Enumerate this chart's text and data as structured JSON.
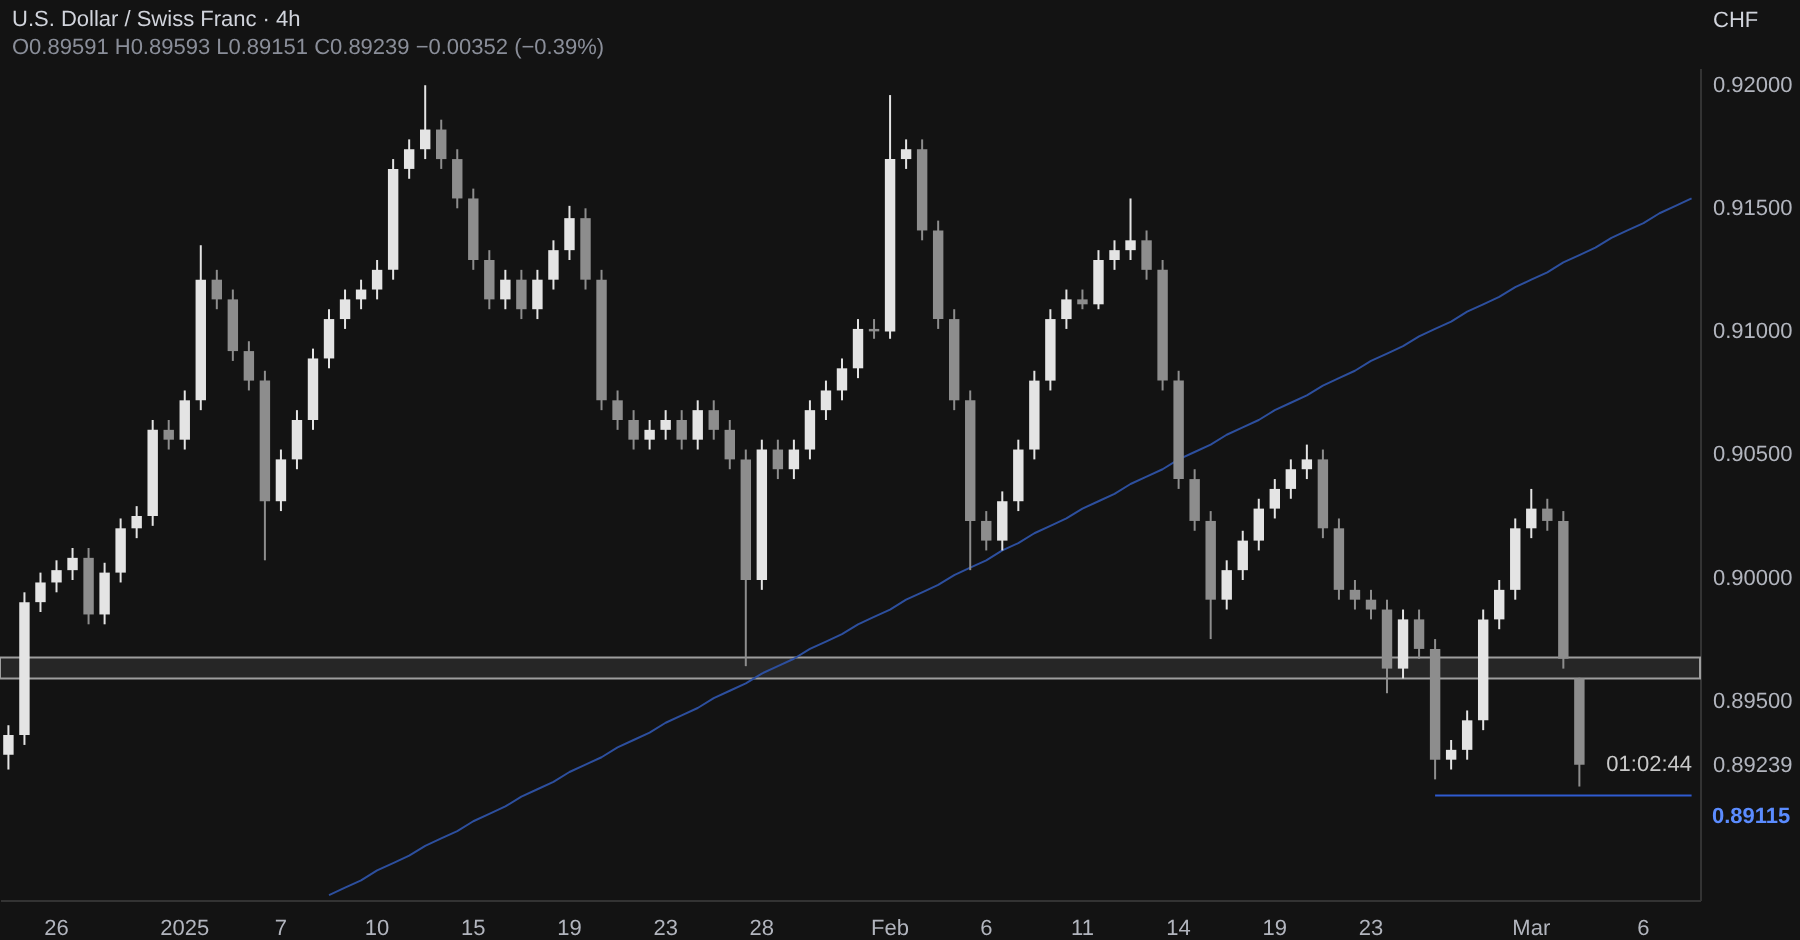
{
  "chart_data": {
    "type": "candlestick",
    "title": "U.S. Dollar / Swiss Franc · 4h",
    "subtitle": "O0.89591 H0.89593 L0.89151 C0.89239 −0.00352 (−0.39%)",
    "ylabel": "CHF",
    "categories": [
      null,
      null,
      null,
      "26",
      null,
      null,
      null,
      null,
      null,
      null,
      null,
      "2025",
      null,
      null,
      null,
      null,
      null,
      "7",
      null,
      null,
      null,
      null,
      null,
      "10",
      null,
      null,
      null,
      null,
      null,
      "15",
      null,
      null,
      null,
      null,
      null,
      "19",
      null,
      null,
      null,
      null,
      null,
      "23",
      null,
      null,
      null,
      null,
      null,
      "28",
      null,
      null,
      null,
      null,
      null,
      null,
      null,
      "Feb",
      null,
      null,
      null,
      null,
      null,
      "6",
      null,
      null,
      null,
      null,
      null,
      "11",
      null,
      null,
      null,
      null,
      null,
      "14",
      null,
      null,
      null,
      null,
      null,
      "19",
      null,
      null,
      null,
      null,
      null,
      "23",
      null,
      null,
      null,
      null,
      null,
      null,
      null,
      null,
      null,
      "Mar",
      null,
      null,
      null,
      null,
      null,
      null,
      "6",
      null,
      null,
      null
    ],
    "ohlc": [
      [
        0.8928,
        0.894,
        0.8922,
        0.8936
      ],
      [
        0.8936,
        0.8994,
        0.8932,
        0.899
      ],
      [
        0.899,
        0.9002,
        0.8986,
        0.8998
      ],
      [
        0.8998,
        0.9007,
        0.8994,
        0.9003
      ],
      [
        0.9003,
        0.9012,
        0.8999,
        0.9008
      ],
      [
        0.9008,
        0.9012,
        0.8981,
        0.8985
      ],
      [
        0.8985,
        0.9006,
        0.8981,
        0.9002
      ],
      [
        0.9002,
        0.9024,
        0.8998,
        0.902
      ],
      [
        0.902,
        0.9029,
        0.9016,
        0.9025
      ],
      [
        0.9025,
        0.9064,
        0.9021,
        0.906
      ],
      [
        0.906,
        0.9064,
        0.9052,
        0.9056
      ],
      [
        0.9056,
        0.9076,
        0.9052,
        0.9072
      ],
      [
        0.9072,
        0.9135,
        0.9068,
        0.9121
      ],
      [
        0.9121,
        0.9125,
        0.9109,
        0.9113
      ],
      [
        0.9113,
        0.9117,
        0.9088,
        0.9092
      ],
      [
        0.9092,
        0.9096,
        0.9076,
        0.908
      ],
      [
        0.908,
        0.9084,
        0.9007,
        0.9031
      ],
      [
        0.9031,
        0.9052,
        0.9027,
        0.9048
      ],
      [
        0.9048,
        0.9068,
        0.9044,
        0.9064
      ],
      [
        0.9064,
        0.9093,
        0.906,
        0.9089
      ],
      [
        0.9089,
        0.9109,
        0.9085,
        0.9105
      ],
      [
        0.9105,
        0.9117,
        0.9101,
        0.9113
      ],
      [
        0.9113,
        0.9121,
        0.9109,
        0.9117
      ],
      [
        0.9117,
        0.9129,
        0.9113,
        0.9125
      ],
      [
        0.9125,
        0.917,
        0.9121,
        0.9166
      ],
      [
        0.9166,
        0.9178,
        0.9162,
        0.9174
      ],
      [
        0.9174,
        0.92,
        0.917,
        0.9182
      ],
      [
        0.9182,
        0.9186,
        0.9166,
        0.917
      ],
      [
        0.917,
        0.9174,
        0.915,
        0.9154
      ],
      [
        0.9154,
        0.9158,
        0.9125,
        0.9129
      ],
      [
        0.9129,
        0.9133,
        0.9109,
        0.9113
      ],
      [
        0.9113,
        0.9125,
        0.9109,
        0.9121
      ],
      [
        0.9121,
        0.9125,
        0.9105,
        0.9109
      ],
      [
        0.9109,
        0.9125,
        0.9105,
        0.9121
      ],
      [
        0.9121,
        0.9137,
        0.9117,
        0.9133
      ],
      [
        0.9133,
        0.9151,
        0.9129,
        0.9146
      ],
      [
        0.9146,
        0.915,
        0.9117,
        0.9121
      ],
      [
        0.9121,
        0.9125,
        0.9068,
        0.9072
      ],
      [
        0.9072,
        0.9076,
        0.906,
        0.9064
      ],
      [
        0.9064,
        0.9068,
        0.9052,
        0.9056
      ],
      [
        0.9056,
        0.9064,
        0.9052,
        0.906
      ],
      [
        0.906,
        0.9068,
        0.9056,
        0.9064
      ],
      [
        0.9064,
        0.9068,
        0.9052,
        0.9056
      ],
      [
        0.9056,
        0.9072,
        0.9052,
        0.9068
      ],
      [
        0.9068,
        0.9072,
        0.9056,
        0.906
      ],
      [
        0.906,
        0.9064,
        0.9044,
        0.9048
      ],
      [
        0.9048,
        0.9052,
        0.8964,
        0.8999
      ],
      [
        0.8999,
        0.9056,
        0.8995,
        0.9052
      ],
      [
        0.9052,
        0.9056,
        0.904,
        0.9044
      ],
      [
        0.9044,
        0.9056,
        0.904,
        0.9052
      ],
      [
        0.9052,
        0.9072,
        0.9048,
        0.9068
      ],
      [
        0.9068,
        0.908,
        0.9064,
        0.9076
      ],
      [
        0.9076,
        0.9089,
        0.9072,
        0.9085
      ],
      [
        0.9085,
        0.9105,
        0.9081,
        0.9101
      ],
      [
        0.9101,
        0.9105,
        0.9097,
        0.91
      ],
      [
        0.91,
        0.9196,
        0.9097,
        0.917
      ],
      [
        0.917,
        0.9178,
        0.9166,
        0.9174
      ],
      [
        0.9174,
        0.9178,
        0.9137,
        0.9141
      ],
      [
        0.9141,
        0.9145,
        0.9101,
        0.9105
      ],
      [
        0.9105,
        0.9109,
        0.9068,
        0.9072
      ],
      [
        0.9072,
        0.9076,
        0.9003,
        0.9023
      ],
      [
        0.9023,
        0.9027,
        0.9011,
        0.9015
      ],
      [
        0.9015,
        0.9035,
        0.9011,
        0.9031
      ],
      [
        0.9031,
        0.9056,
        0.9027,
        0.9052
      ],
      [
        0.9052,
        0.9084,
        0.9048,
        0.908
      ],
      [
        0.908,
        0.9109,
        0.9076,
        0.9105
      ],
      [
        0.9105,
        0.9117,
        0.9101,
        0.9113
      ],
      [
        0.9113,
        0.9117,
        0.9109,
        0.9111
      ],
      [
        0.9111,
        0.9133,
        0.9109,
        0.9129
      ],
      [
        0.9129,
        0.9137,
        0.9125,
        0.9133
      ],
      [
        0.9133,
        0.9154,
        0.9129,
        0.9137
      ],
      [
        0.9137,
        0.9141,
        0.9121,
        0.9125
      ],
      [
        0.9125,
        0.9129,
        0.9076,
        0.908
      ],
      [
        0.908,
        0.9084,
        0.9036,
        0.904
      ],
      [
        0.904,
        0.9044,
        0.9019,
        0.9023
      ],
      [
        0.9023,
        0.9027,
        0.8975,
        0.8991
      ],
      [
        0.8991,
        0.9007,
        0.8987,
        0.9003
      ],
      [
        0.9003,
        0.9019,
        0.8999,
        0.9015
      ],
      [
        0.9015,
        0.9032,
        0.9011,
        0.9028
      ],
      [
        0.9028,
        0.904,
        0.9024,
        0.9036
      ],
      [
        0.9036,
        0.9048,
        0.9032,
        0.9044
      ],
      [
        0.9044,
        0.9054,
        0.904,
        0.9048
      ],
      [
        0.9048,
        0.9052,
        0.9016,
        0.902
      ],
      [
        0.902,
        0.9024,
        0.8991,
        0.8995
      ],
      [
        0.8995,
        0.8999,
        0.8987,
        0.8991
      ],
      [
        0.8991,
        0.8995,
        0.8983,
        0.8987
      ],
      [
        0.8987,
        0.8991,
        0.8953,
        0.8963
      ],
      [
        0.8963,
        0.8987,
        0.8959,
        0.8983
      ],
      [
        0.8983,
        0.8987,
        0.8967,
        0.8971
      ],
      [
        0.8971,
        0.8975,
        0.8918,
        0.8926
      ],
      [
        0.8926,
        0.8934,
        0.8922,
        0.893
      ],
      [
        0.893,
        0.8946,
        0.8926,
        0.8942
      ],
      [
        0.8942,
        0.8987,
        0.8938,
        0.8983
      ],
      [
        0.8983,
        0.8999,
        0.8979,
        0.8995
      ],
      [
        0.8995,
        0.9024,
        0.8991,
        0.902
      ],
      [
        0.902,
        0.9036,
        0.9016,
        0.9028
      ],
      [
        0.9028,
        0.9032,
        0.9019,
        0.9023
      ],
      [
        0.9023,
        0.9027,
        0.8963,
        0.8967
      ],
      [
        0.89591,
        0.89593,
        0.89151,
        0.89239
      ],
      null,
      null,
      null,
      null,
      null,
      null,
      null
    ],
    "series": [
      {
        "type": "line",
        "values": [
          null,
          null,
          null,
          null,
          null,
          null,
          null,
          null,
          null,
          null,
          null,
          null,
          null,
          null,
          null,
          null,
          null,
          null,
          null,
          null,
          0.8871,
          0.8874,
          0.8877,
          0.8881,
          0.8884,
          0.8887,
          0.8891,
          0.8894,
          0.8897,
          0.8901,
          0.8904,
          0.8907,
          0.8911,
          0.8914,
          0.8917,
          0.8921,
          0.8924,
          0.8927,
          0.8931,
          0.8934,
          0.8937,
          0.8941,
          0.8944,
          0.8947,
          0.8951,
          0.8954,
          0.8957,
          0.8961,
          0.8964,
          0.8967,
          0.8971,
          0.8974,
          0.8977,
          0.8981,
          0.8984,
          0.8987,
          0.8991,
          0.8994,
          0.8997,
          0.9001,
          0.9004,
          0.9007,
          0.9011,
          0.9014,
          0.9018,
          0.9021,
          0.9024,
          0.9028,
          0.9031,
          0.9034,
          0.9038,
          0.9041,
          0.9044,
          0.9048,
          0.9051,
          0.9054,
          0.9058,
          0.9061,
          0.9064,
          0.9068,
          0.9071,
          0.9074,
          0.9078,
          0.9081,
          0.9084,
          0.9088,
          0.9091,
          0.9094,
          0.9098,
          0.9101,
          0.9104,
          0.9108,
          0.9111,
          0.9114,
          0.9118,
          0.9121,
          0.9124,
          0.9128,
          0.9131,
          0.9134,
          0.9138,
          0.9141,
          0.9144,
          0.9148,
          0.9151,
          0.9154
        ],
        "color": "#2d4f9e"
      },
      {
        "type": "line",
        "values": [
          null,
          null,
          null,
          null,
          null,
          null,
          null,
          null,
          null,
          null,
          null,
          null,
          null,
          null,
          null,
          null,
          null,
          null,
          null,
          null,
          null,
          null,
          null,
          null,
          null,
          null,
          null,
          null,
          null,
          null,
          null,
          null,
          null,
          null,
          null,
          null,
          null,
          null,
          null,
          null,
          null,
          null,
          null,
          null,
          null,
          null,
          null,
          null,
          null,
          null,
          null,
          null,
          null,
          null,
          null,
          null,
          null,
          null,
          null,
          null,
          null,
          null,
          null,
          null,
          null,
          null,
          null,
          null,
          null,
          null,
          null,
          null,
          null,
          null,
          null,
          null,
          null,
          null,
          null,
          null,
          null,
          null,
          null,
          null,
          null,
          null,
          null,
          null,
          null,
          0.89115,
          0.89115,
          0.89115,
          0.89115,
          0.89115,
          0.89115,
          0.89115,
          0.89115,
          0.89115,
          0.89115,
          0.89115,
          0.89115,
          0.89115,
          0.89115,
          0.89115,
          0.89115,
          0.89115
        ],
        "color": "#2f5bd0"
      }
    ],
    "bands": [
      {
        "axis": "y",
        "from": 0.8959,
        "to": 0.89675,
        "color": "#9e9e9e"
      }
    ],
    "annotations": [
      "01:02:44",
      "0.89115"
    ],
    "ylim": [
      0.8869,
      0.9207
    ],
    "yticks": [
      {
        "value": 0.89239,
        "label": "0.89239"
      },
      {
        "value": 0.895,
        "label": "0.89500"
      },
      {
        "value": 0.9,
        "label": "0.90000"
      },
      {
        "value": 0.905,
        "label": "0.90500"
      },
      {
        "value": 0.91,
        "label": "0.91000"
      },
      {
        "value": 0.915,
        "label": "0.91500"
      },
      {
        "value": 0.92,
        "label": "0.92000"
      }
    ]
  }
}
